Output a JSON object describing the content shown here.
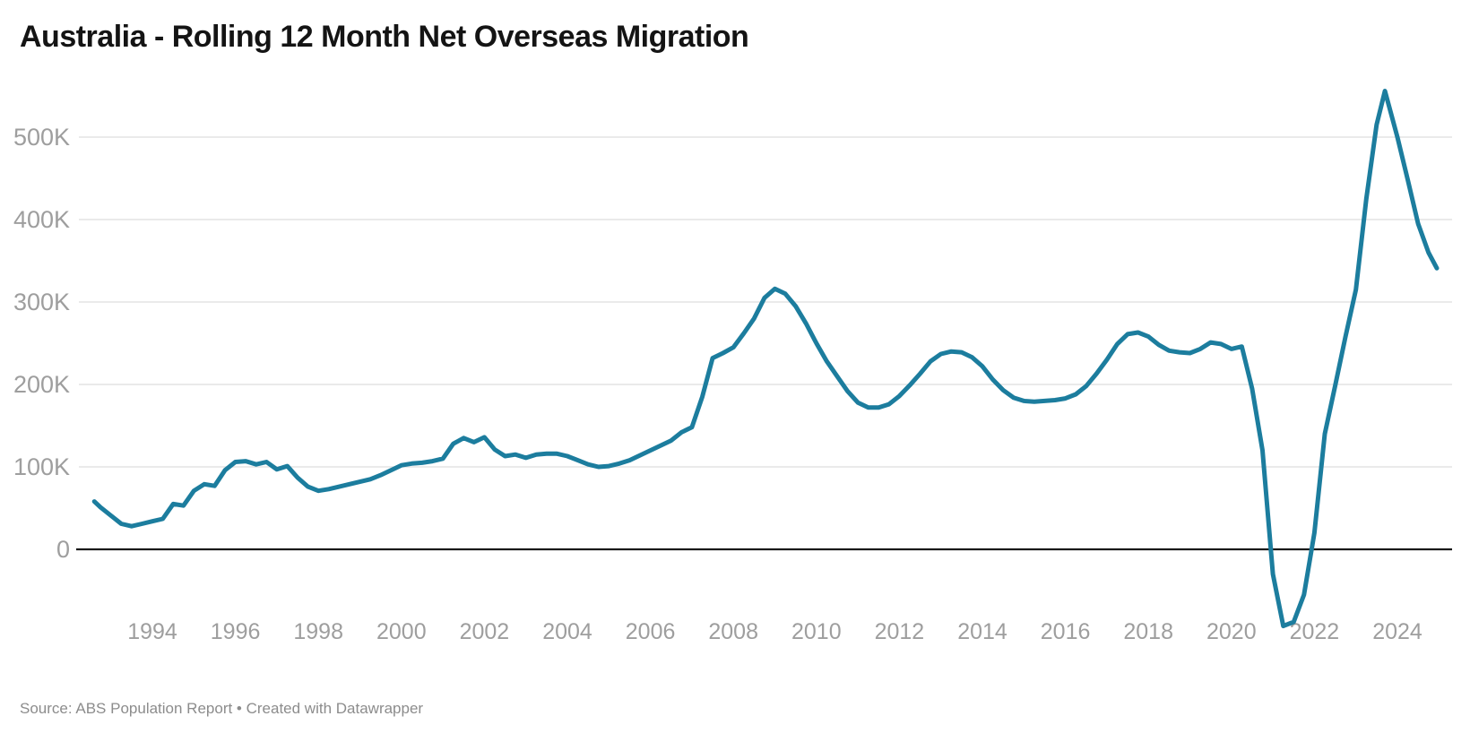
{
  "header": {
    "title": "Australia - Rolling 12 Month Net Overseas Migration"
  },
  "footer": {
    "source": "Source: ABS Population Report • Created with Datawrapper"
  },
  "colors": {
    "line": "#1c7d9e",
    "grid": "#e4e4e4",
    "zero_line": "#1a1a1a",
    "axis_text": "#9e9e9e",
    "title_text": "#141414",
    "source_text": "#8c8c8c",
    "background": "#ffffff"
  },
  "chart_data": {
    "type": "line",
    "title": "Australia - Rolling 12 Month Net Overseas Migration",
    "xlabel": "",
    "ylabel": "",
    "legend": "none",
    "grid": "horizontal",
    "x_ticks": [
      1994,
      1996,
      1998,
      2000,
      2002,
      2004,
      2006,
      2008,
      2010,
      2012,
      2014,
      2016,
      2018,
      2020,
      2022,
      2024
    ],
    "y_ticks": [
      {
        "value": 0,
        "label": "0"
      },
      {
        "value": 100000,
        "label": "100K"
      },
      {
        "value": 200000,
        "label": "200K"
      },
      {
        "value": 300000,
        "label": "300K"
      },
      {
        "value": 400000,
        "label": "400K"
      },
      {
        "value": 500000,
        "label": "500K"
      }
    ],
    "xlim": [
      1992.4,
      2025.2
    ],
    "ylim": [
      -140000,
      580000
    ],
    "series": [
      {
        "name": "Net Overseas Migration (rolling 12 month)",
        "points": [
          [
            1992.6,
            58000
          ],
          [
            1992.75,
            51000
          ],
          [
            1993.0,
            41000
          ],
          [
            1993.25,
            31000
          ],
          [
            1993.5,
            28000
          ],
          [
            1993.75,
            31000
          ],
          [
            1994.0,
            34000
          ],
          [
            1994.25,
            37000
          ],
          [
            1994.5,
            55000
          ],
          [
            1994.75,
            53000
          ],
          [
            1995.0,
            71000
          ],
          [
            1995.25,
            79000
          ],
          [
            1995.5,
            77000
          ],
          [
            1995.75,
            96000
          ],
          [
            1996.0,
            106000
          ],
          [
            1996.25,
            107000
          ],
          [
            1996.5,
            103000
          ],
          [
            1996.75,
            106000
          ],
          [
            1997.0,
            97000
          ],
          [
            1997.25,
            101000
          ],
          [
            1997.5,
            87000
          ],
          [
            1997.75,
            76000
          ],
          [
            1998.0,
            71000
          ],
          [
            1998.25,
            73000
          ],
          [
            1998.5,
            76000
          ],
          [
            1998.75,
            79000
          ],
          [
            1999.0,
            82000
          ],
          [
            1999.25,
            85000
          ],
          [
            1999.5,
            90000
          ],
          [
            1999.75,
            96000
          ],
          [
            2000.0,
            102000
          ],
          [
            2000.25,
            104000
          ],
          [
            2000.5,
            105000
          ],
          [
            2000.75,
            107000
          ],
          [
            2001.0,
            110000
          ],
          [
            2001.25,
            128000
          ],
          [
            2001.5,
            135000
          ],
          [
            2001.75,
            130000
          ],
          [
            2002.0,
            136000
          ],
          [
            2002.25,
            121000
          ],
          [
            2002.5,
            113000
          ],
          [
            2002.75,
            115000
          ],
          [
            2003.0,
            111000
          ],
          [
            2003.25,
            115000
          ],
          [
            2003.5,
            116000
          ],
          [
            2003.75,
            116000
          ],
          [
            2004.0,
            113000
          ],
          [
            2004.25,
            108000
          ],
          [
            2004.5,
            103000
          ],
          [
            2004.75,
            100000
          ],
          [
            2005.0,
            101000
          ],
          [
            2005.25,
            104000
          ],
          [
            2005.5,
            108000
          ],
          [
            2005.75,
            114000
          ],
          [
            2006.0,
            120000
          ],
          [
            2006.25,
            126000
          ],
          [
            2006.5,
            132000
          ],
          [
            2006.75,
            142000
          ],
          [
            2007.0,
            148000
          ],
          [
            2007.25,
            185000
          ],
          [
            2007.5,
            232000
          ],
          [
            2007.75,
            238000
          ],
          [
            2008.0,
            245000
          ],
          [
            2008.25,
            262000
          ],
          [
            2008.5,
            280000
          ],
          [
            2008.75,
            305000
          ],
          [
            2009.0,
            316000
          ],
          [
            2009.25,
            310000
          ],
          [
            2009.5,
            295000
          ],
          [
            2009.75,
            274000
          ],
          [
            2010.0,
            250000
          ],
          [
            2010.25,
            228000
          ],
          [
            2010.5,
            210000
          ],
          [
            2010.75,
            192000
          ],
          [
            2011.0,
            178000
          ],
          [
            2011.25,
            172000
          ],
          [
            2011.5,
            172000
          ],
          [
            2011.75,
            176000
          ],
          [
            2012.0,
            186000
          ],
          [
            2012.25,
            199000
          ],
          [
            2012.5,
            213000
          ],
          [
            2012.75,
            228000
          ],
          [
            2013.0,
            237000
          ],
          [
            2013.25,
            240000
          ],
          [
            2013.5,
            239000
          ],
          [
            2013.75,
            233000
          ],
          [
            2014.0,
            222000
          ],
          [
            2014.25,
            206000
          ],
          [
            2014.5,
            193000
          ],
          [
            2014.75,
            184000
          ],
          [
            2015.0,
            180000
          ],
          [
            2015.25,
            179000
          ],
          [
            2015.5,
            180000
          ],
          [
            2015.75,
            181000
          ],
          [
            2016.0,
            183000
          ],
          [
            2016.25,
            188000
          ],
          [
            2016.5,
            198000
          ],
          [
            2016.75,
            213000
          ],
          [
            2017.0,
            230000
          ],
          [
            2017.25,
            249000
          ],
          [
            2017.5,
            261000
          ],
          [
            2017.75,
            263000
          ],
          [
            2018.0,
            258000
          ],
          [
            2018.25,
            248000
          ],
          [
            2018.5,
            241000
          ],
          [
            2018.75,
            239000
          ],
          [
            2019.0,
            238000
          ],
          [
            2019.25,
            243000
          ],
          [
            2019.5,
            251000
          ],
          [
            2019.75,
            249000
          ],
          [
            2020.0,
            243000
          ],
          [
            2020.25,
            246000
          ],
          [
            2020.5,
            195000
          ],
          [
            2020.75,
            120000
          ],
          [
            2021.0,
            -30000
          ],
          [
            2021.25,
            -93000
          ],
          [
            2021.5,
            -88000
          ],
          [
            2021.75,
            -55000
          ],
          [
            2022.0,
            20000
          ],
          [
            2022.25,
            140000
          ],
          [
            2022.5,
            198000
          ],
          [
            2022.75,
            258000
          ],
          [
            2023.0,
            315000
          ],
          [
            2023.25,
            425000
          ],
          [
            2023.5,
            515000
          ],
          [
            2023.7,
            556000
          ],
          [
            2024.0,
            500000
          ],
          [
            2024.25,
            448000
          ],
          [
            2024.5,
            395000
          ],
          [
            2024.75,
            360000
          ],
          [
            2024.95,
            341000
          ]
        ]
      }
    ]
  }
}
